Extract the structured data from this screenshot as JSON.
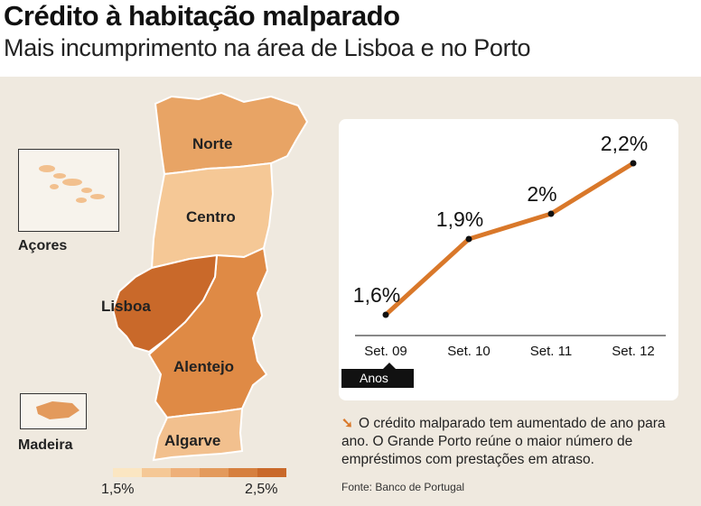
{
  "header": {
    "title": "Crédito à habitação malparado",
    "subtitle": "Mais incumprimento na área de Lisboa e no Porto"
  },
  "map": {
    "regions": [
      {
        "name": "Norte",
        "color": "#e8a465"
      },
      {
        "name": "Centro",
        "color": "#f5c896"
      },
      {
        "name": "Lisboa",
        "color": "#c9692a"
      },
      {
        "name": "Alentejo",
        "color": "#df8a45"
      },
      {
        "name": "Algarve",
        "color": "#f2c08e"
      }
    ],
    "insets": {
      "acores": "Açores",
      "madeira": "Madeira"
    },
    "legend": {
      "min_label": "1,5%",
      "max_label": "2,5%",
      "colors": [
        "#fbe6c2",
        "#f5c896",
        "#eeb07a",
        "#e39a5c",
        "#d6803f",
        "#c9692a"
      ]
    }
  },
  "chart_data": {
    "type": "line",
    "categories": [
      "Set. 09",
      "Set. 10",
      "Set. 11",
      "Set. 12"
    ],
    "values": [
      1.6,
      1.9,
      2.0,
      2.2
    ],
    "data_labels": [
      "1,6%",
      "1,9%",
      "2%",
      "2,2%"
    ],
    "xlabel": "Anos",
    "ylabel": "",
    "line_color": "#d9782a"
  },
  "note": {
    "arrow": "➘",
    "text": "O crédito malparado tem aumentado de ano para ano. O Grande Porto reúne o maior número de empréstimos com prestações em atraso."
  },
  "source": "Fonte: Banco de Portugal"
}
